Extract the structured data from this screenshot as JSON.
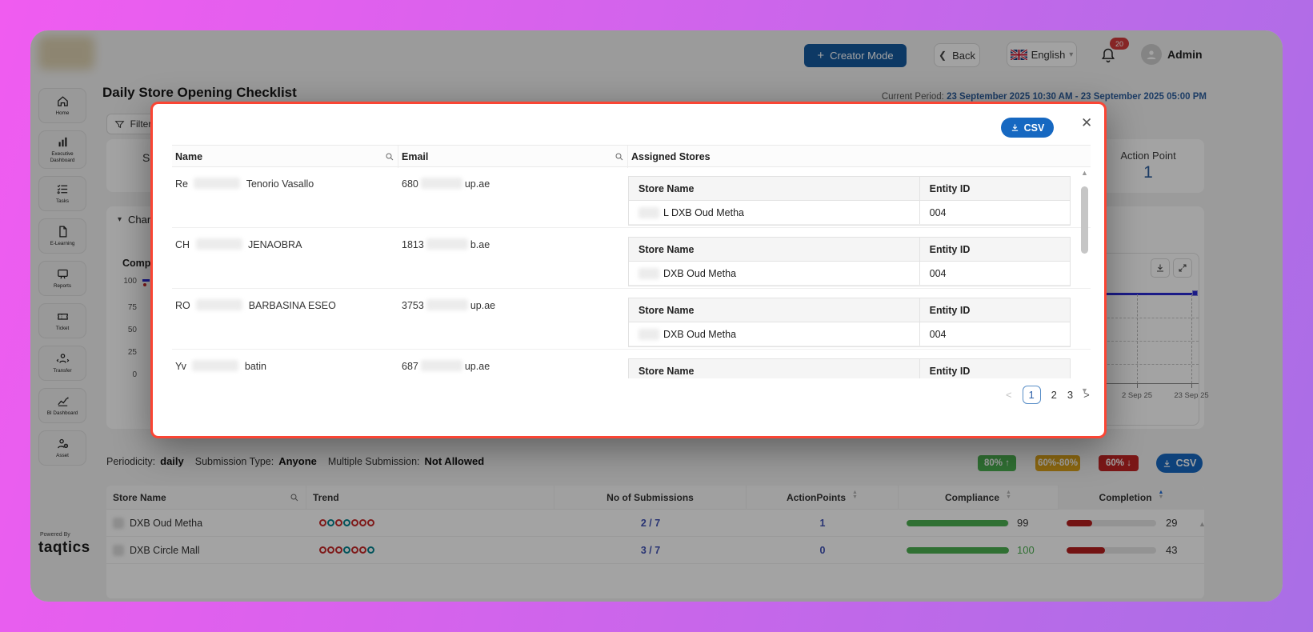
{
  "header": {
    "creator_mode_label": "Creator Mode",
    "back_label": "Back",
    "language_label": "English",
    "notification_count": "20",
    "user_label": "Admin"
  },
  "sidebar": {
    "items": [
      {
        "id": "home",
        "icon": "home-icon",
        "label": "Home"
      },
      {
        "id": "executive-dashboard",
        "icon": "bar-chart-icon",
        "label": "Executive Dashboard"
      },
      {
        "id": "tasks",
        "icon": "checklist-icon",
        "label": "Tasks"
      },
      {
        "id": "e-learning",
        "icon": "document-icon",
        "label": "E-Learning"
      },
      {
        "id": "reports",
        "icon": "monitor-icon",
        "label": "Reports"
      },
      {
        "id": "ticket",
        "icon": "ticket-icon",
        "label": "Ticket"
      },
      {
        "id": "transfer",
        "icon": "person-arrows-icon",
        "label": "Transfer"
      },
      {
        "id": "bi-dashboard",
        "icon": "trend-chart-icon",
        "label": "BI Dashboard"
      },
      {
        "id": "asset",
        "icon": "person-gear-icon",
        "label": "Asset"
      }
    ],
    "powered_by": "Powered By",
    "brand": "taqtics"
  },
  "page": {
    "title": "Daily Store Opening Checklist",
    "current_period_label": "Current Period:",
    "current_period_value": "23 September 2025 10:30 AM  -  23 September 2025 05:00 PM",
    "filters_label": "Filters",
    "summary_card_partial": "S",
    "action_point": {
      "label": "Action Point",
      "value": "1"
    },
    "chart_section_label": "Chart",
    "left_chart": {
      "title": "Compli",
      "y_ticks": [
        "100",
        "75",
        "50",
        "25",
        "0"
      ]
    },
    "right_chart": {
      "x_ticks": [
        "2 Sep 25",
        "23 Sep 25"
      ],
      "line_color": "#2b2bd4"
    },
    "meta": {
      "periodicity_label": "Periodicity:",
      "periodicity_value": "daily",
      "submission_type_label": "Submission Type:",
      "submission_type_value": "Anyone",
      "multiple_submission_label": "Multiple Submission:",
      "multiple_submission_value": "Not Allowed"
    },
    "csv_label": "CSV"
  },
  "legend_badges": [
    {
      "label": "80% ↑",
      "color": "#4caf50"
    },
    {
      "label": "60%-80%",
      "color": "#d9a21b"
    },
    {
      "label": "60% ↓",
      "color": "#c12525"
    }
  ],
  "store_table": {
    "headers": {
      "store": "Store Name",
      "trend": "Trend",
      "submissions": "No of Submissions",
      "action_points": "ActionPoints",
      "compliance": "Compliance",
      "completion": "Completion"
    },
    "trend_colors": {
      "red": "#c62828",
      "teal": "#00838f"
    },
    "bar_green": "#4caf50",
    "bar_red": "#b51f1f",
    "rows": [
      {
        "store": "DXB Oud Metha",
        "trend": [
          "red",
          "teal",
          "red",
          "teal",
          "red",
          "red",
          "red"
        ],
        "submissions": "2 / 7",
        "action_points": "1",
        "compliance": 99,
        "compliance_text_color": "#333333",
        "completion": 29
      },
      {
        "store": "DXB Circle Mall",
        "trend": [
          "red",
          "red",
          "red",
          "teal",
          "red",
          "red",
          "teal"
        ],
        "submissions": "3 / 7",
        "action_points": "0",
        "compliance": 100,
        "compliance_text_color": "#4caf50",
        "completion": 43
      }
    ]
  },
  "modal": {
    "csv_label": "CSV",
    "columns": {
      "name": "Name",
      "email": "Email",
      "stores": "Assigned Stores"
    },
    "nested_headers": {
      "store": "Store Name",
      "entity": "Entity ID"
    },
    "rows": [
      {
        "name_prefix": "Re",
        "name_suffix": "Tenorio Vasallo",
        "email_prefix": "680",
        "email_suffix": "up.ae",
        "stores": [
          {
            "name": "L DXB Oud Metha",
            "entity": "004"
          }
        ]
      },
      {
        "name_prefix": "CH",
        "name_suffix": "JENAOBRA",
        "email_prefix": "1813",
        "email_suffix": "b.ae",
        "stores": [
          {
            "name": "DXB Oud Metha",
            "entity": "004"
          }
        ]
      },
      {
        "name_prefix": "RO",
        "name_suffix": "BARBASINA ESEO",
        "email_prefix": "3753",
        "email_suffix": "up.ae",
        "stores": [
          {
            "name": "DXB Oud Metha",
            "entity": "004"
          }
        ]
      },
      {
        "name_prefix": "Yv",
        "name_suffix": "batin",
        "email_prefix": "687",
        "email_suffix": "up.ae",
        "stores": []
      }
    ],
    "pagination": {
      "prev": "<",
      "pages": [
        "1",
        "2",
        "3"
      ],
      "active": "1",
      "next": ">"
    }
  }
}
